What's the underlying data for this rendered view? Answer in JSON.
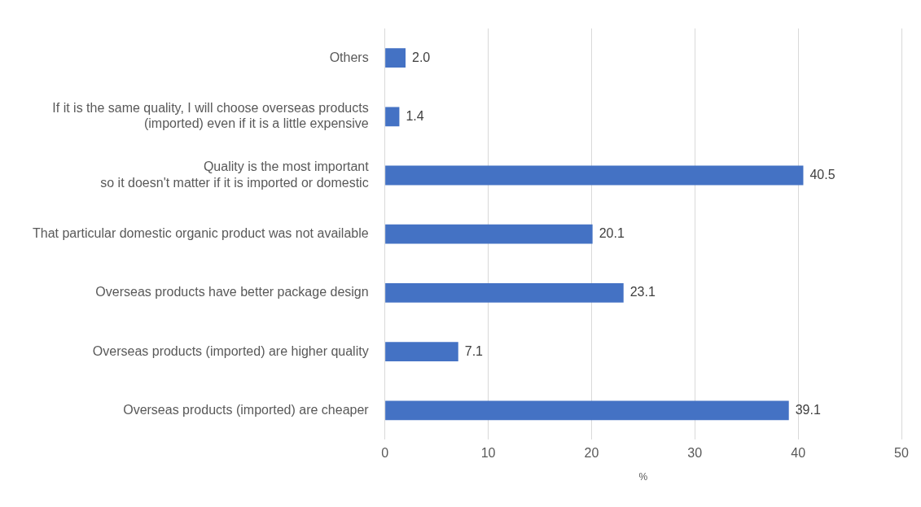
{
  "chart_data": {
    "type": "bar",
    "orientation": "horizontal",
    "xlabel": "%",
    "categories": [
      "Others",
      "If it is the same quality, I will choose overseas products\n(imported) even if it is a little expensive",
      "Quality is the most important\nso it doesn't matter if it is imported or domestic",
      "That particular domestic organic product was not available",
      "Overseas products have better package design",
      "Overseas products (imported) are higher quality",
      "Overseas products (imported) are cheaper"
    ],
    "values": [
      2.0,
      1.4,
      40.5,
      20.1,
      23.1,
      7.1,
      39.1
    ],
    "color": "#4472c4",
    "xlim": [
      0,
      50
    ],
    "xticks": [
      0,
      10,
      20,
      30,
      40,
      50
    ],
    "grid": "x",
    "value_labels": [
      "2.0",
      "1.4",
      "40.5",
      "20.1",
      "23.1",
      "7.1",
      "39.1"
    ],
    "legend": false
  }
}
